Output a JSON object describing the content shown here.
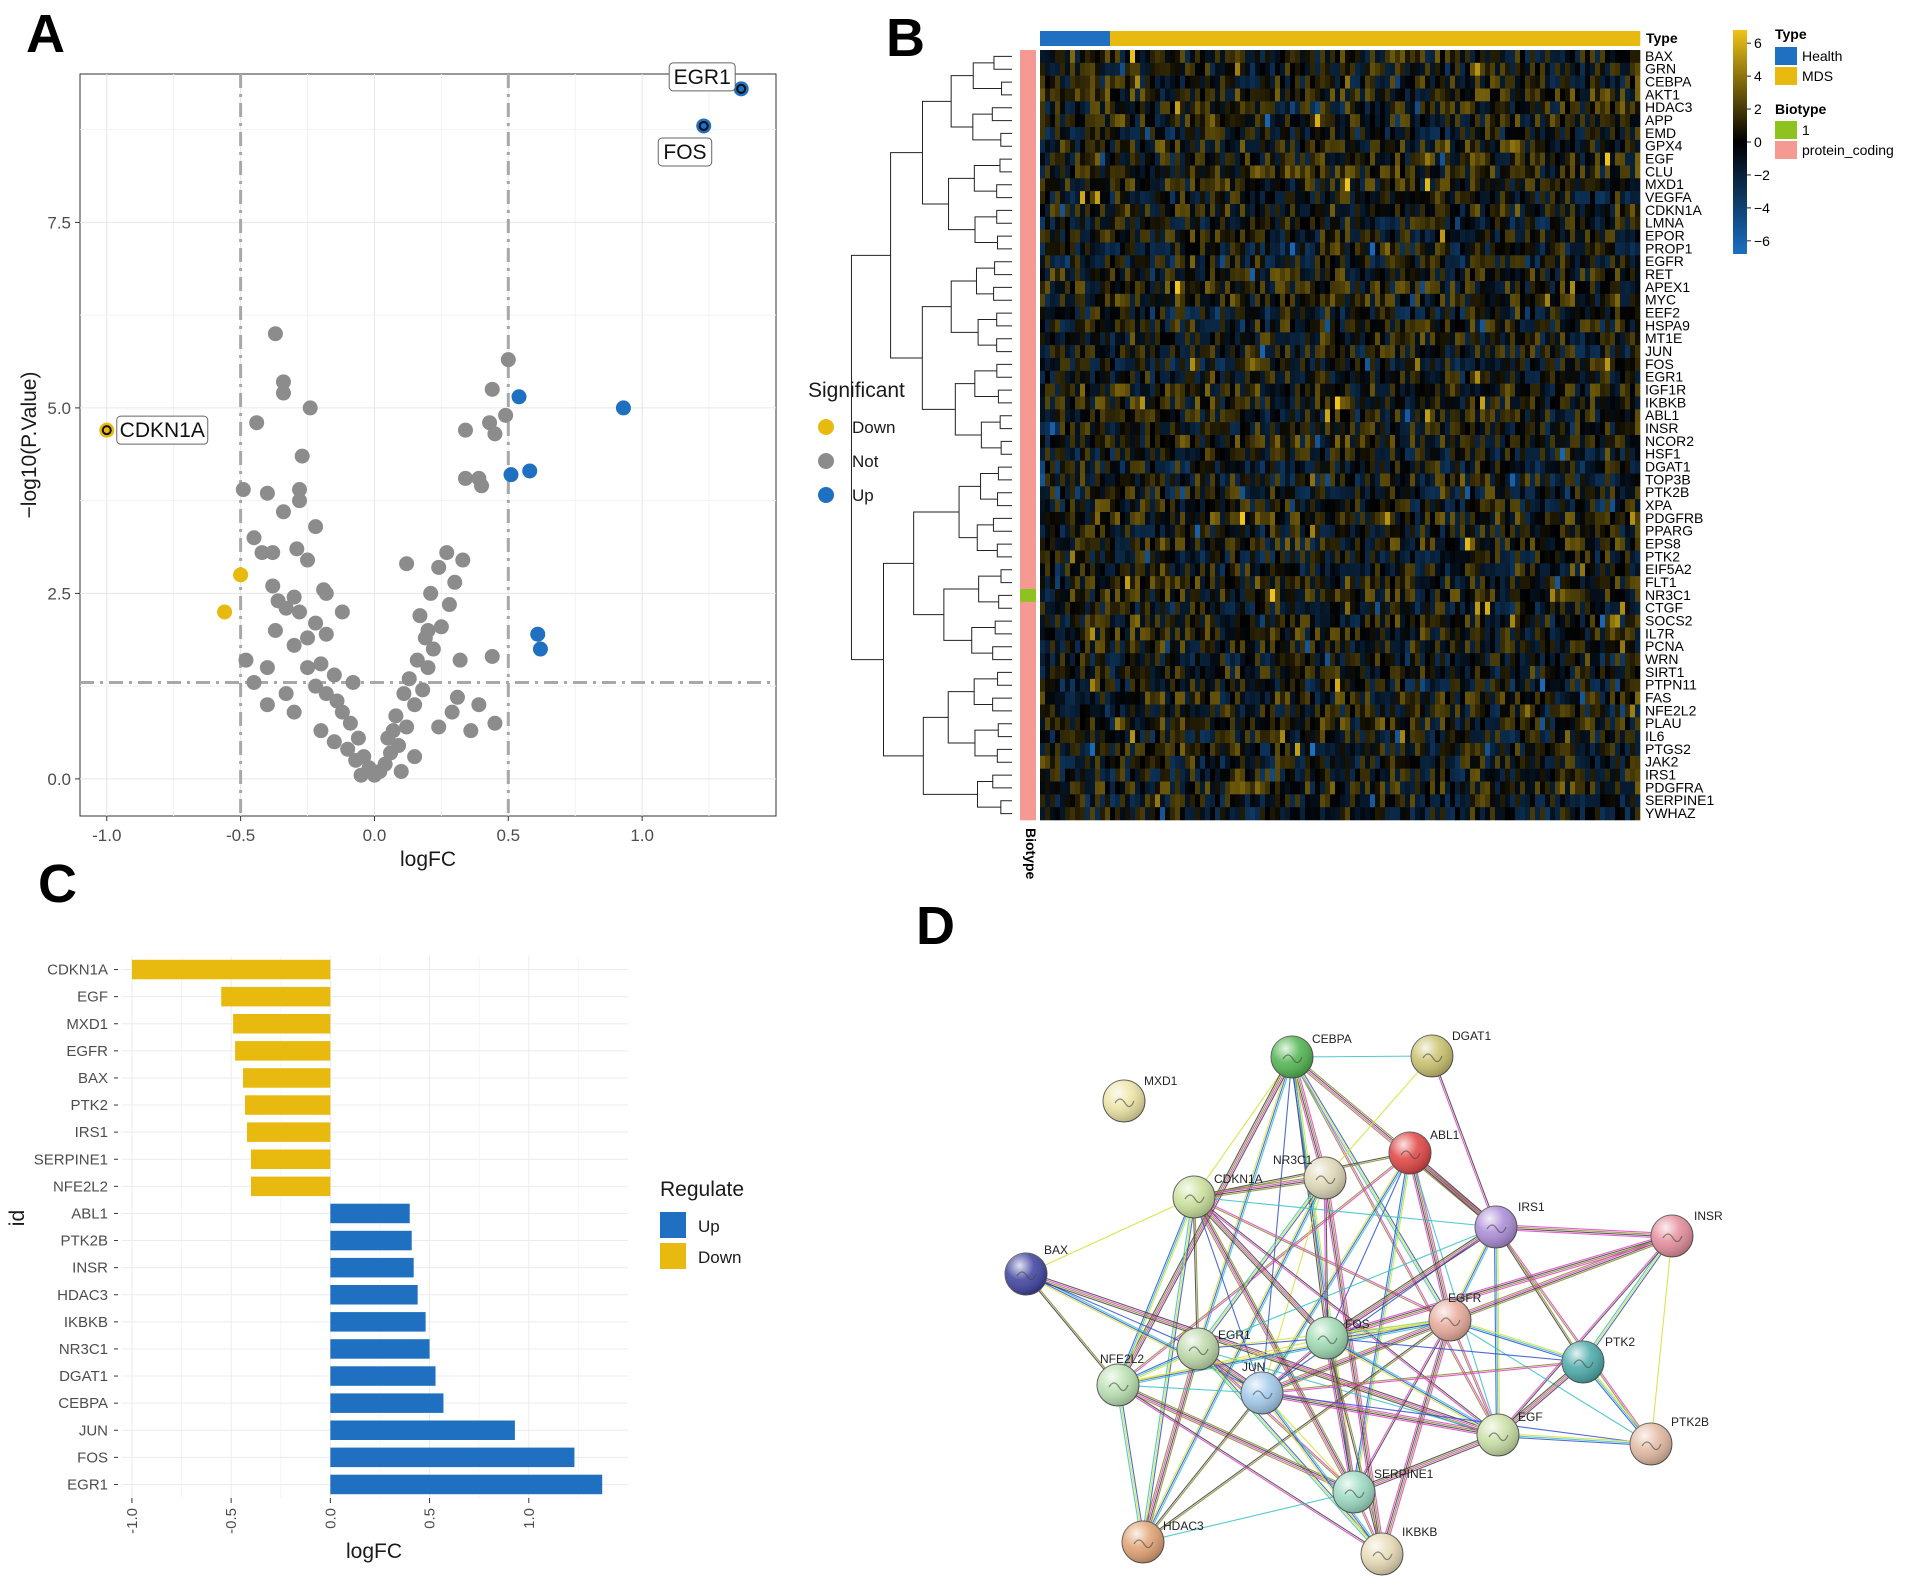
{
  "panels": {
    "a": "A",
    "b": "B",
    "c": "C",
    "d": "D"
  },
  "colors": {
    "down": "#e8b90e",
    "not": "#8c8c8c",
    "up": "#1f70c1",
    "health": "#1f70c1",
    "mds": "#e8b90e",
    "biotype_1": "#8dc21f",
    "protein_coding": "#f59a93"
  },
  "chart_data": [
    {
      "panel": "A",
      "type": "scatter",
      "xlabel": "logFC",
      "ylabel": "−log10(P.Value)",
      "xlim": [
        -1.1,
        1.5
      ],
      "ylim": [
        -0.5,
        9.5
      ],
      "xticks": [
        -1.0,
        -0.5,
        0.0,
        0.5,
        1.0
      ],
      "xtick_labels": [
        "-1.0",
        "-0.5",
        "0.0",
        "0.5",
        "1.0"
      ],
      "yticks": [
        0.0,
        2.5,
        5.0,
        7.5
      ],
      "ytick_labels": [
        "0.0",
        "2.5",
        "5.0",
        "7.5"
      ],
      "thresholds": {
        "logfc": [
          -0.5,
          0.5
        ],
        "neglog10p": 1.3
      },
      "legend": {
        "title": "Significant",
        "items": [
          "Down",
          "Not",
          "Up"
        ]
      },
      "labels": [
        {
          "text": "EGR1",
          "x": 1.37,
          "y": 9.3
        },
        {
          "text": "FOS",
          "x": 1.23,
          "y": 8.8
        },
        {
          "text": "CDKN1A",
          "x": -1.0,
          "y": 4.7
        }
      ],
      "series": [
        {
          "name": "Down",
          "points": [
            [
              -1.0,
              4.7
            ],
            [
              -0.5,
              2.75
            ],
            [
              -0.56,
              2.25
            ]
          ]
        },
        {
          "name": "Up",
          "points": [
            [
              1.37,
              9.3
            ],
            [
              1.23,
              8.8
            ],
            [
              0.93,
              5.0
            ],
            [
              0.54,
              5.15
            ],
            [
              0.58,
              4.15
            ],
            [
              0.51,
              4.1
            ],
            [
              0.61,
              1.95
            ],
            [
              0.62,
              1.75
            ]
          ]
        },
        {
          "name": "Not",
          "points": [
            [
              -0.37,
              6.0
            ],
            [
              -0.34,
              5.35
            ],
            [
              -0.34,
              5.2
            ],
            [
              -0.24,
              5.0
            ],
            [
              -0.44,
              4.8
            ],
            [
              -0.27,
              4.35
            ],
            [
              -0.49,
              3.9
            ],
            [
              -0.4,
              3.85
            ],
            [
              -0.28,
              3.9
            ],
            [
              -0.28,
              3.75
            ],
            [
              -0.34,
              3.6
            ],
            [
              -0.22,
              3.4
            ],
            [
              -0.45,
              3.25
            ],
            [
              -0.38,
              3.05
            ],
            [
              -0.42,
              3.05
            ],
            [
              -0.29,
              3.1
            ],
            [
              -0.25,
              2.95
            ],
            [
              -0.38,
              2.6
            ],
            [
              -0.3,
              2.45
            ],
            [
              -0.36,
              2.4
            ],
            [
              -0.19,
              2.55
            ],
            [
              -0.18,
              2.5
            ],
            [
              -0.33,
              2.3
            ],
            [
              -0.28,
              2.25
            ],
            [
              -0.12,
              2.25
            ],
            [
              -0.22,
              2.1
            ],
            [
              -0.37,
              2.0
            ],
            [
              -0.18,
              1.95
            ],
            [
              -0.25,
              1.9
            ],
            [
              -0.3,
              1.8
            ],
            [
              -0.48,
              1.6
            ],
            [
              -0.4,
              1.5
            ],
            [
              -0.25,
              1.5
            ],
            [
              -0.2,
              1.55
            ],
            [
              -0.15,
              1.4
            ],
            [
              -0.45,
              1.3
            ],
            [
              -0.22,
              1.25
            ],
            [
              -0.33,
              1.15
            ],
            [
              -0.18,
              1.15
            ],
            [
              -0.08,
              1.3
            ],
            [
              -0.14,
              1.05
            ],
            [
              -0.4,
              1.0
            ],
            [
              -0.3,
              0.9
            ],
            [
              -0.12,
              0.9
            ],
            [
              -0.09,
              0.75
            ],
            [
              -0.2,
              0.65
            ],
            [
              -0.06,
              0.55
            ],
            [
              -0.15,
              0.5
            ],
            [
              -0.1,
              0.4
            ],
            [
              -0.04,
              0.3
            ],
            [
              -0.07,
              0.25
            ],
            [
              -0.02,
              0.15
            ],
            [
              0.0,
              0.05
            ],
            [
              0.02,
              0.1
            ],
            [
              0.04,
              0.2
            ],
            [
              0.06,
              0.35
            ],
            [
              0.09,
              0.45
            ],
            [
              0.05,
              0.55
            ],
            [
              0.12,
              0.7
            ],
            [
              0.08,
              0.85
            ],
            [
              0.15,
              1.0
            ],
            [
              0.11,
              1.15
            ],
            [
              0.18,
              1.2
            ],
            [
              0.13,
              1.35
            ],
            [
              0.2,
              1.5
            ],
            [
              0.16,
              1.6
            ],
            [
              0.22,
              1.75
            ],
            [
              0.19,
              1.9
            ],
            [
              0.25,
              2.05
            ],
            [
              0.17,
              2.2
            ],
            [
              0.28,
              2.35
            ],
            [
              0.21,
              2.5
            ],
            [
              0.3,
              2.65
            ],
            [
              0.24,
              2.85
            ],
            [
              0.33,
              2.95
            ],
            [
              0.27,
              3.05
            ],
            [
              0.29,
              0.9
            ],
            [
              0.24,
              0.7
            ],
            [
              0.31,
              1.1
            ],
            [
              0.36,
              0.65
            ],
            [
              0.39,
              1.0
            ],
            [
              0.45,
              0.75
            ],
            [
              0.44,
              1.65
            ],
            [
              0.34,
              4.05
            ],
            [
              0.4,
              3.95
            ],
            [
              0.39,
              4.05
            ],
            [
              0.43,
              4.8
            ],
            [
              0.45,
              4.65
            ],
            [
              0.49,
              4.9
            ],
            [
              0.44,
              5.25
            ],
            [
              0.5,
              5.65
            ],
            [
              0.34,
              4.7
            ],
            [
              0.32,
              1.6
            ],
            [
              0.12,
              2.9
            ],
            [
              0.2,
              2.0
            ],
            [
              0.15,
              0.3
            ],
            [
              0.1,
              0.1
            ],
            [
              -0.05,
              0.05
            ],
            [
              0.07,
              0.65
            ]
          ]
        }
      ]
    },
    {
      "panel": "C",
      "type": "bar",
      "orientation": "horizontal",
      "xlabel": "logFC",
      "ylabel": "id",
      "xlim": [
        -1.05,
        1.5
      ],
      "xticks": [
        -1.0,
        -0.5,
        0.0,
        0.5,
        1.0
      ],
      "xtick_labels": [
        "-1.0",
        "-0.5",
        "0.0",
        "0.5",
        "1.0"
      ],
      "legend": {
        "title": "Regulate",
        "items": [
          "Up",
          "Down"
        ]
      },
      "categories": [
        "CDKN1A",
        "EGF",
        "MXD1",
        "EGFR",
        "BAX",
        "PTK2",
        "IRS1",
        "SERPINE1",
        "NFE2L2",
        "ABL1",
        "PTK2B",
        "INSR",
        "HDAC3",
        "IKBKB",
        "NR3C1",
        "DGAT1",
        "CEBPA",
        "JUN",
        "FOS",
        "EGR1"
      ],
      "values": [
        -1.0,
        -0.55,
        -0.49,
        -0.48,
        -0.44,
        -0.43,
        -0.42,
        -0.4,
        -0.4,
        0.4,
        0.41,
        0.42,
        0.44,
        0.48,
        0.5,
        0.53,
        0.57,
        0.93,
        1.23,
        1.37
      ],
      "groups": [
        "Down",
        "Down",
        "Down",
        "Down",
        "Down",
        "Down",
        "Down",
        "Down",
        "Down",
        "Up",
        "Up",
        "Up",
        "Up",
        "Up",
        "Up",
        "Up",
        "Up",
        "Up",
        "Up",
        "Up"
      ]
    },
    {
      "panel": "B",
      "type": "heatmap",
      "genes": [
        "BAX",
        "GRN",
        "CEBPA",
        "AKT1",
        "HDAC3",
        "APP",
        "EMD",
        "GPX4",
        "EGF",
        "CLU",
        "MXD1",
        "VEGFA",
        "CDKN1A",
        "LMNA",
        "EPOR",
        "PROP1",
        "EGFR",
        "RET",
        "APEX1",
        "MYC",
        "EEF2",
        "HSPA9",
        "MT1E",
        "JUN",
        "FOS",
        "EGR1",
        "IGF1R",
        "IKBKB",
        "ABL1",
        "INSR",
        "NCOR2",
        "HSF1",
        "DGAT1",
        "TOP3B",
        "PTK2B",
        "XPA",
        "PDGFRB",
        "PPARG",
        "EPS8",
        "PTK2",
        "EIF5A2",
        "FLT1",
        "NR3C1",
        "CTGF",
        "SOCS2",
        "IL7R",
        "PCNA",
        "WRN",
        "SIRT1",
        "PTPN11",
        "FAS",
        "NFE2L2",
        "PLAU",
        "IL6",
        "PTGS2",
        "JAK2",
        "IRS1",
        "PDGFRA",
        "SERPINE1",
        "YWHAZ"
      ],
      "n_samples": 120,
      "n_health": 14,
      "color_scale": {
        "ticks": [
          6,
          4,
          2,
          0,
          -2,
          -4,
          -6
        ],
        "labels": [
          "6",
          "4",
          "2",
          "0",
          "−2",
          "−4",
          "−6"
        ]
      },
      "annotation_label": "Type",
      "row_annotation_label": "Biotype",
      "legend": {
        "type_title": "Type",
        "type_items": [
          "Health",
          "MDS"
        ],
        "biotype_title": "Biotype",
        "biotype_items": [
          "1",
          "protein_coding"
        ]
      }
    }
  ],
  "network": {
    "panel": "D",
    "nodes": [
      {
        "id": "CEBPA",
        "color": "#4db34d"
      },
      {
        "id": "DGAT1",
        "color": "#c8c06a"
      },
      {
        "id": "MXD1",
        "color": "#ece3a2"
      },
      {
        "id": "ABL1",
        "color": "#e0413f"
      },
      {
        "id": "NR3C1",
        "color": "#ddd6b5"
      },
      {
        "id": "CDKN1A",
        "color": "#c9e09a"
      },
      {
        "id": "IRS1",
        "color": "#a98ad6"
      },
      {
        "id": "INSR",
        "color": "#e38a99"
      },
      {
        "id": "BAX",
        "color": "#3b3f9e"
      },
      {
        "id": "EGFR",
        "color": "#e8a99a"
      },
      {
        "id": "EGR1",
        "color": "#bcd8a8"
      },
      {
        "id": "FOS",
        "color": "#9cd9b0"
      },
      {
        "id": "PTK2",
        "color": "#48a8a8"
      },
      {
        "id": "NFE2L2",
        "color": "#b8e0b0"
      },
      {
        "id": "JUN",
        "color": "#9fc8ea"
      },
      {
        "id": "EGF",
        "color": "#c8dea2"
      },
      {
        "id": "PTK2B",
        "color": "#e2b8a0"
      },
      {
        "id": "SERPINE1",
        "color": "#98d8c0"
      },
      {
        "id": "HDAC3",
        "color": "#e0a070"
      },
      {
        "id": "IKBKB",
        "color": "#e6d9b3"
      }
    ]
  }
}
